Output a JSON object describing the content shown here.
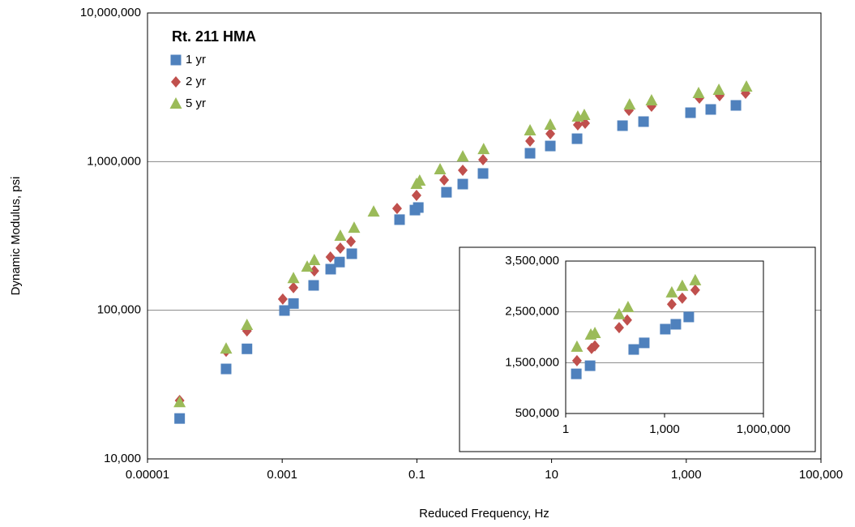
{
  "chart_data": [
    {
      "type": "scatter",
      "legend_title": "Rt. 211 HMA",
      "legend": "upper left",
      "xlabel": "Reduced Frequency, Hz",
      "ylabel": "Dynamic Modulus, psi",
      "xscale": "log",
      "yscale": "log",
      "xlim": [
        1e-05,
        100000
      ],
      "ylim": [
        10000,
        10000000
      ],
      "xticks": [
        1e-05,
        0.001,
        0.1,
        10,
        {
          "value": 1000,
          "label": "1,000"
        },
        {
          "value": 100000,
          "label": "100,000"
        }
      ],
      "yticks": [
        {
          "value": 10000,
          "label": "10,000"
        },
        {
          "value": 100000,
          "label": "100,000"
        },
        {
          "value": 1000000,
          "label": "1,000,000"
        },
        {
          "value": 10000000,
          "label": "10,000,000"
        }
      ],
      "grid": true,
      "series": [
        {
          "name": "1 yr",
          "color": "#4f81bd",
          "marker": "square",
          "x": [
            3e-05,
            0.000147,
            0.0003,
            0.00108,
            0.00147,
            0.00293,
            0.00525,
            0.0071,
            0.0108,
            0.0553,
            0.0936,
            0.105,
            0.275,
            0.48,
            0.96,
            4.79,
            9.57,
            23.9,
            113,
            232,
            1156,
            2310,
            5460
          ],
          "values": [
            18700,
            40300,
            55000,
            99600,
            111000,
            147000,
            189000,
            211000,
            240000,
            407000,
            472000,
            491000,
            622000,
            706000,
            832000,
            1138000,
            1274000,
            1426000,
            1745000,
            1858000,
            2133000,
            2244000,
            2389000
          ]
        },
        {
          "name": "2 yr",
          "color": "#c0504d",
          "marker": "diamond",
          "x": [
            3e-05,
            0.000147,
            0.0003,
            0.00102,
            0.00147,
            0.003,
            0.0052,
            0.0073,
            0.0105,
            0.0508,
            0.0988,
            0.254,
            0.48,
            0.96,
            4.79,
            9.57,
            24.5,
            31.5,
            141,
            305,
            1567,
            3130,
            7600
          ],
          "values": [
            24700,
            53000,
            72600,
            119000,
            142000,
            184000,
            228000,
            262000,
            290000,
            484000,
            593000,
            752000,
            875000,
            1030000,
            1375000,
            1538000,
            1766000,
            1811000,
            2213000,
            2360000,
            2675000,
            2778000,
            2884000
          ]
        },
        {
          "name": "5 yr",
          "color": "#9bbb59",
          "marker": "triangle",
          "x": [
            3e-05,
            0.000147,
            0.0003,
            0.00147,
            0.00235,
            0.003,
            0.0073,
            0.0117,
            0.0228,
            0.0988,
            0.11,
            0.221,
            0.48,
            0.98,
            4.79,
            9.57,
            24.5,
            30.6,
            144,
            305,
            1524,
            3050,
            7820
          ],
          "values": [
            24000,
            55100,
            79400,
            164000,
            196000,
            217000,
            316000,
            358000,
            460000,
            706000,
            743000,
            885000,
            1081000,
            1210000,
            1618000,
            1766000,
            2003000,
            2055000,
            2417000,
            2576000,
            2884000,
            3035000,
            3190000
          ]
        }
      ]
    },
    {
      "type": "scatter",
      "xscale": "log",
      "yscale": "linear",
      "xlim": [
        1,
        1000000
      ],
      "ylim": [
        500000,
        3500000
      ],
      "xticks": [
        1,
        {
          "value": 1000,
          "label": "1,000"
        },
        {
          "value": 1000000,
          "label": "1,000,000"
        }
      ],
      "yticks": [
        {
          "value": 500000,
          "label": "500,000"
        },
        {
          "value": 1500000,
          "label": "1,500,000"
        },
        {
          "value": 2500000,
          "label": "2,500,000"
        },
        {
          "value": 3500000,
          "label": "3,500,000"
        }
      ],
      "grid": true,
      "series": [
        {
          "color": "#4f81bd",
          "marker": "square",
          "x": [
            2.1,
            5.5,
            116,
            242,
            1050,
            2200,
            5430
          ],
          "values": [
            1280000,
            1440000,
            1760000,
            1890000,
            2160000,
            2256000,
            2400000
          ]
        },
        {
          "color": "#c0504d",
          "marker": "diamond",
          "x": [
            2.2,
            6.1,
            7.7,
            41.9,
            73.7,
            1656,
            3450,
            8530
          ],
          "values": [
            1540000,
            1780000,
            1830000,
            2190000,
            2340000,
            2650000,
            2770000,
            2930000
          ]
        },
        {
          "color": "#9bbb59",
          "marker": "triangle",
          "x": [
            2.2,
            5.8,
            7.7,
            41.9,
            78,
            1656,
            3450,
            8530
          ],
          "values": [
            1810000,
            2050000,
            2080000,
            2450000,
            2590000,
            2880000,
            3010000,
            3120000
          ]
        }
      ]
    }
  ]
}
